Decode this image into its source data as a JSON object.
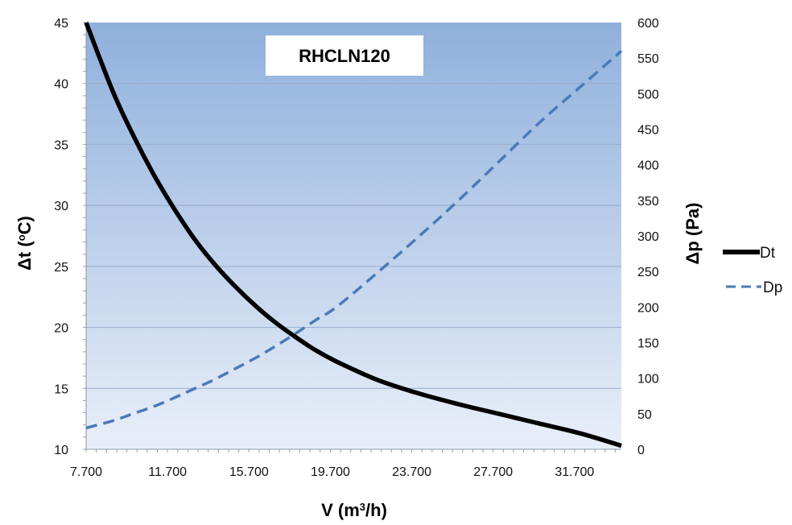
{
  "chart_data": {
    "type": "line",
    "title": "RHCLN120",
    "xlabel_main": "V (m",
    "xlabel_sup": "3",
    "xlabel_tail": "/h)",
    "ylabel_left_main": "Δt (",
    "ylabel_left_sup": "o",
    "ylabel_left_tail": "C)",
    "ylabel_right": "Δp (Pa)",
    "x_ticks": [
      {
        "value": 7700,
        "label": "7.700"
      },
      {
        "value": 11700,
        "label": "11.700"
      },
      {
        "value": 15700,
        "label": "15.700"
      },
      {
        "value": 19700,
        "label": "19.700"
      },
      {
        "value": 23700,
        "label": "23.700"
      },
      {
        "value": 27700,
        "label": "27.700"
      },
      {
        "value": 31700,
        "label": "31.700"
      }
    ],
    "xlim": [
      7700,
      34000
    ],
    "y_left_ticks": [
      10,
      15,
      20,
      25,
      30,
      35,
      40,
      45
    ],
    "ylim_left": [
      10,
      45
    ],
    "y_right_ticks": [
      0,
      50,
      100,
      150,
      200,
      250,
      300,
      350,
      400,
      450,
      500,
      550,
      600
    ],
    "ylim_right": [
      0,
      600
    ],
    "grid": true,
    "legend_position": "right",
    "series": [
      {
        "name": "Dt",
        "axis": "left",
        "style": "solid",
        "color": "#000000",
        "x": [
          7700,
          9000,
          10000,
          11000,
          12000,
          13000,
          14000,
          15000,
          16000,
          17000,
          18000,
          19000,
          20000,
          22000,
          24000,
          26000,
          28000,
          30000,
          32000,
          34000
        ],
        "y": [
          45.0,
          39.4,
          35.8,
          32.6,
          29.8,
          27.3,
          25.2,
          23.4,
          21.8,
          20.4,
          19.2,
          18.1,
          17.2,
          15.7,
          14.6,
          13.7,
          12.9,
          12.1,
          11.3,
          10.3
        ]
      },
      {
        "name": "Dp",
        "axis": "right",
        "style": "dashed",
        "color": "#4a7ab8",
        "x": [
          7700,
          9000,
          10000,
          11000,
          12000,
          13000,
          14000,
          15000,
          16000,
          17000,
          18000,
          19000,
          20000,
          22000,
          24000,
          26000,
          28000,
          30000,
          32000,
          34000
        ],
        "y": [
          30,
          40,
          50,
          60,
          72,
          85,
          98,
          113,
          128,
          145,
          163,
          182,
          200,
          248,
          298,
          350,
          405,
          460,
          510,
          560
        ]
      }
    ]
  },
  "colors": {
    "plot_top": "#8fb0dc",
    "plot_bottom": "#e9eff9",
    "gridline": "#9aaccb",
    "dp_line": "#4a7ab8",
    "dt_line": "#000000"
  }
}
